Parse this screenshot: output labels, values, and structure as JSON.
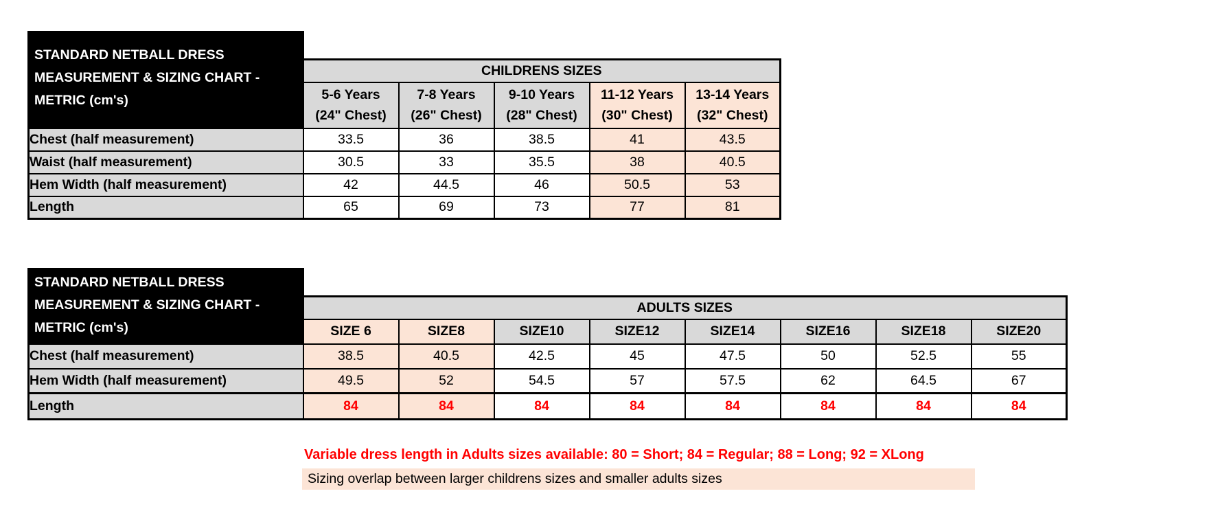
{
  "colors": {
    "header_gray": "#d9d9d9",
    "overlap_peach": "#fce4d6",
    "alert_red": "#ff0000",
    "title_bg": "#000000",
    "title_text": "#ffffff"
  },
  "corner_title_lines": [
    "STANDARD NETBALL DRESS",
    "MEASUREMENT & SIZING CHART -",
    "METRIC (cm's)"
  ],
  "children_table": {
    "group_header": "CHILDRENS SIZES",
    "col_headers": [
      {
        "line1": "5-6 Years",
        "line2": "(24\" Chest)",
        "highlight": false
      },
      {
        "line1": "7-8 Years",
        "line2": "(26\" Chest)",
        "highlight": false
      },
      {
        "line1": "9-10 Years",
        "line2": "(28\" Chest)",
        "highlight": false
      },
      {
        "line1": "11-12 Years",
        "line2": "(30\" Chest)",
        "highlight": true
      },
      {
        "line1": "13-14 Years",
        "line2": "(32\" Chest)",
        "highlight": true
      }
    ],
    "rows": [
      {
        "label": "Chest (half measurement)",
        "values": [
          "33.5",
          "36",
          "38.5",
          "41",
          "43.5"
        ]
      },
      {
        "label": "Waist (half measurement)",
        "values": [
          "30.5",
          "33",
          "35.5",
          "38",
          "40.5"
        ]
      },
      {
        "label": "Hem Width (half measurement)",
        "values": [
          "42",
          "44.5",
          "46",
          "50.5",
          "53"
        ]
      },
      {
        "label": "Length",
        "values": [
          "65",
          "69",
          "73",
          "77",
          "81"
        ]
      }
    ]
  },
  "adults_table": {
    "group_header": "ADULTS SIZES",
    "col_headers": [
      {
        "label": "SIZE 6",
        "highlight": true
      },
      {
        "label": "SIZE8",
        "highlight": true
      },
      {
        "label": "SIZE10",
        "highlight": false
      },
      {
        "label": "SIZE12",
        "highlight": false
      },
      {
        "label": "SIZE14",
        "highlight": false
      },
      {
        "label": "SIZE16",
        "highlight": false
      },
      {
        "label": "SIZE18",
        "highlight": false
      },
      {
        "label": "SIZE20",
        "highlight": false
      }
    ],
    "rows": [
      {
        "label": "Chest (half measurement)",
        "red": false,
        "values": [
          "38.5",
          "40.5",
          "42.5",
          "45",
          "47.5",
          "50",
          "52.5",
          "55"
        ]
      },
      {
        "label": "Hem Width (half measurement)",
        "red": false,
        "values": [
          "49.5",
          "52",
          "54.5",
          "57",
          "57.5",
          "62",
          "64.5",
          "67"
        ]
      },
      {
        "label": "Length",
        "red": true,
        "values": [
          "84",
          "84",
          "84",
          "84",
          "84",
          "84",
          "84",
          "84"
        ]
      }
    ]
  },
  "notes": {
    "variable_length": "Variable dress length in Adults sizes available: 80 = Short; 84 = Regular; 88 = Long; 92 = XLong",
    "sizing_overlap": "Sizing overlap between larger childrens sizes and smaller adults sizes"
  }
}
